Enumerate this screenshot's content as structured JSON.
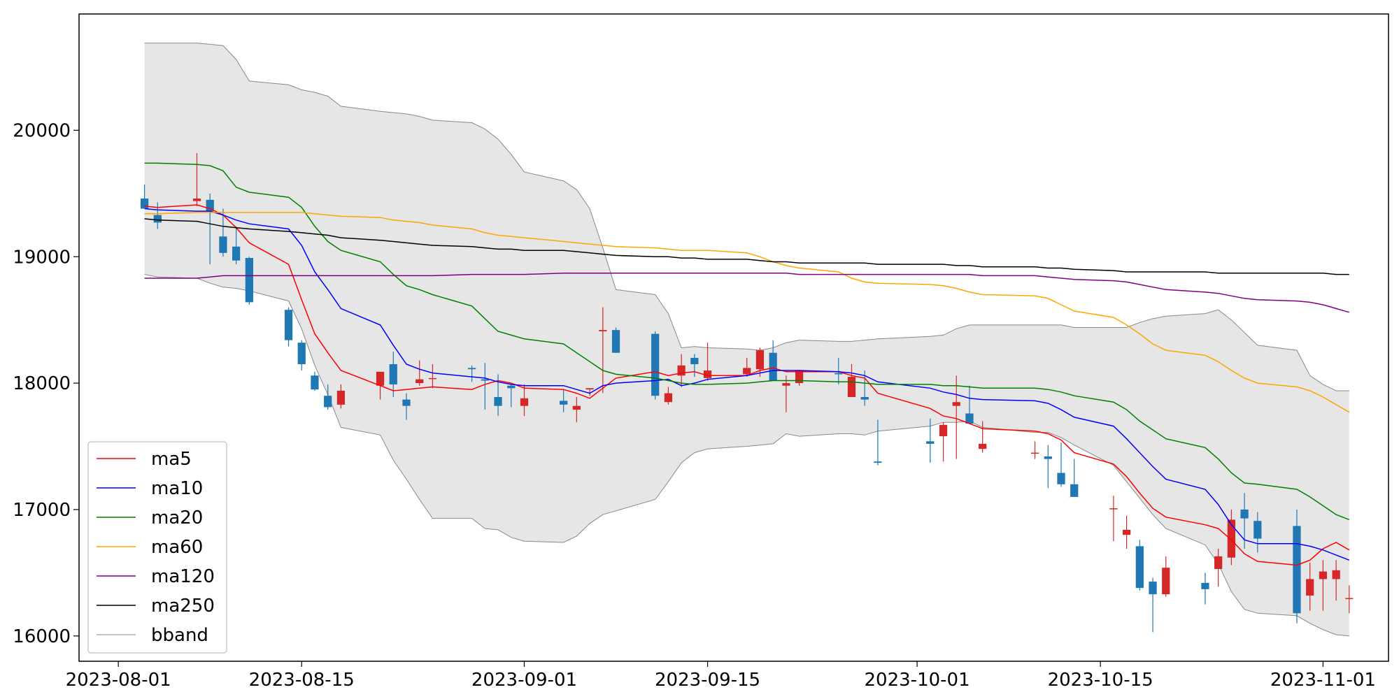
{
  "chart_data": {
    "type": "candlestick",
    "title": "",
    "xlabel": "",
    "ylabel": "",
    "ylim": [
      15800,
      20920
    ],
    "xlim": [
      "2023-07-29",
      "2023-11-06"
    ],
    "grid": false,
    "legend_placement": "lower-left",
    "colors": {
      "up": "#d62728",
      "down": "#1f77b4",
      "bband_fill": "#e6e6e6",
      "bband_line": "#888888"
    },
    "x_ticks": [
      "2023-08-01",
      "2023-08-15",
      "2023-09-01",
      "2023-09-15",
      "2023-10-01",
      "2023-10-15",
      "2023-11-01"
    ],
    "y_ticks": [
      16000,
      17000,
      18000,
      19000,
      20000
    ],
    "dates": [
      "2023-08-03",
      "2023-08-04",
      "2023-08-07",
      "2023-08-08",
      "2023-08-09",
      "2023-08-10",
      "2023-08-11",
      "2023-08-14",
      "2023-08-15",
      "2023-08-16",
      "2023-08-17",
      "2023-08-18",
      "2023-08-21",
      "2023-08-22",
      "2023-08-23",
      "2023-08-24",
      "2023-08-25",
      "2023-08-28",
      "2023-08-29",
      "2023-08-30",
      "2023-08-31",
      "2023-09-01",
      "2023-09-04",
      "2023-09-05",
      "2023-09-06",
      "2023-09-07",
      "2023-09-08",
      "2023-09-11",
      "2023-09-12",
      "2023-09-13",
      "2023-09-14",
      "2023-09-15",
      "2023-09-18",
      "2023-09-19",
      "2023-09-20",
      "2023-09-21",
      "2023-09-22",
      "2023-09-25",
      "2023-09-26",
      "2023-09-27",
      "2023-09-28",
      "2023-10-02",
      "2023-10-03",
      "2023-10-04",
      "2023-10-05",
      "2023-10-06",
      "2023-10-10",
      "2023-10-11",
      "2023-10-12",
      "2023-10-13",
      "2023-10-16",
      "2023-10-17",
      "2023-10-18",
      "2023-10-19",
      "2023-10-20",
      "2023-10-23",
      "2023-10-24",
      "2023-10-25",
      "2023-10-26",
      "2023-10-27",
      "2023-10-30",
      "2023-10-31",
      "2023-11-01",
      "2023-11-02",
      "2023-11-03"
    ],
    "open": [
      19460,
      19330,
      19440,
      19450,
      19160,
      19080,
      18990,
      18580,
      18320,
      18060,
      17900,
      17830,
      17980,
      18150,
      17870,
      18000,
      18040,
      18120,
      18030,
      17890,
      17980,
      17820,
      17860,
      17790,
      17950,
      18410,
      18420,
      18390,
      17850,
      18060,
      18200,
      18040,
      18070,
      18110,
      18240,
      17980,
      18000,
      18080,
      17890,
      17890,
      17380,
      17540,
      17580,
      17820,
      17760,
      17480,
      17450,
      17420,
      17290,
      17200,
      17010,
      16800,
      16710,
      16430,
      16330,
      16420,
      16530,
      16620,
      17000,
      16910,
      16870,
      16320,
      16450,
      16450,
      16300
    ],
    "high": [
      19570,
      19430,
      19820,
      19500,
      19380,
      19240,
      19000,
      18600,
      18340,
      18090,
      17990,
      17990,
      18040,
      18250,
      17920,
      18180,
      18150,
      18140,
      18160,
      18070,
      17990,
      17990,
      17950,
      17890,
      17950,
      18600,
      18440,
      18410,
      17970,
      18230,
      18230,
      18320,
      18200,
      18280,
      18340,
      18060,
      18050,
      18200,
      18150,
      18100,
      17710,
      17720,
      17690,
      18060,
      17980,
      17700,
      17540,
      17510,
      17530,
      17400,
      17110,
      16950,
      16760,
      16460,
      16630,
      16500,
      16690,
      17000,
      17130,
      16980,
      17000,
      16580,
      16600,
      16600,
      16400
    ],
    "low": [
      19400,
      19220,
      19400,
      18940,
      19000,
      18940,
      18620,
      18290,
      18100,
      17940,
      17790,
      17800,
      17870,
      17890,
      17710,
      17980,
      17960,
      18010,
      17790,
      17740,
      17810,
      17740,
      17770,
      17690,
      17900,
      17920,
      18240,
      17870,
      17830,
      17970,
      18050,
      18020,
      18050,
      18050,
      18020,
      17770,
      17980,
      17990,
      17910,
      17820,
      17350,
      17370,
      17380,
      17400,
      17710,
      17450,
      17400,
      17170,
      17180,
      17100,
      16750,
      16690,
      16360,
      16030,
      16310,
      16250,
      16390,
      16560,
      16690,
      16660,
      16100,
      16200,
      16200,
      16280,
      16180
    ],
    "close": [
      19380,
      19270,
      19460,
      19360,
      19030,
      18970,
      18640,
      18340,
      18150,
      17950,
      17810,
      17940,
      18090,
      17990,
      17820,
      18030,
      18040,
      18110,
      18020,
      17820,
      17960,
      17880,
      17830,
      17820,
      17960,
      18420,
      18240,
      17900,
      17920,
      18140,
      18150,
      18100,
      18120,
      18260,
      18020,
      18000,
      18100,
      18070,
      18050,
      17870,
      17370,
      17520,
      17670,
      17850,
      17680,
      17520,
      17450,
      17400,
      17200,
      17100,
      17010,
      16840,
      16380,
      16330,
      16540,
      16370,
      16630,
      16920,
      16930,
      16770,
      16180,
      16450,
      16510,
      16520,
      16300
    ],
    "bband_upper": [
      20690,
      20690,
      20690,
      20680,
      20670,
      20560,
      20390,
      20360,
      20320,
      20300,
      20270,
      20190,
      20150,
      20140,
      20130,
      20110,
      20080,
      20060,
      20010,
      19930,
      19810,
      19670,
      19600,
      19530,
      19380,
      19070,
      18740,
      18700,
      18550,
      18280,
      18290,
      18280,
      18270,
      18260,
      18280,
      18320,
      18340,
      18330,
      18330,
      18340,
      18350,
      18370,
      18380,
      18430,
      18460,
      18460,
      18460,
      18460,
      18460,
      18440,
      18440,
      18440,
      18480,
      18510,
      18530,
      18550,
      18580,
      18500,
      18400,
      18300,
      18260,
      18060,
      17990,
      17940,
      17940
    ],
    "bband_lower": [
      18860,
      18840,
      18830,
      18790,
      18760,
      18750,
      18730,
      18650,
      18430,
      18140,
      17910,
      17650,
      17590,
      17390,
      17240,
      17080,
      16930,
      16930,
      16850,
      16840,
      16780,
      16750,
      16740,
      16790,
      16890,
      16960,
      16990,
      17080,
      17220,
      17370,
      17450,
      17480,
      17500,
      17510,
      17520,
      17600,
      17580,
      17600,
      17600,
      17590,
      17620,
      17660,
      17690,
      17690,
      17700,
      17650,
      17610,
      17610,
      17570,
      17510,
      17350,
      17220,
      17090,
      16960,
      16850,
      16720,
      16570,
      16350,
      16210,
      16180,
      16160,
      16100,
      16050,
      16010,
      16000
    ],
    "series": [
      {
        "name": "ma5",
        "color": "#ff0000",
        "values": [
          19400,
          19390,
          19410,
          19380,
          19330,
          19230,
          19110,
          18940,
          18660,
          18390,
          18240,
          18100,
          17980,
          17940,
          17950,
          17960,
          17970,
          17950,
          17990,
          18020,
          18000,
          17960,
          17950,
          17920,
          17880,
          17960,
          18040,
          18090,
          18060,
          18080,
          18090,
          18060,
          18060,
          18100,
          18120,
          18090,
          18090,
          18090,
          18060,
          18040,
          17920,
          17800,
          17740,
          17720,
          17680,
          17640,
          17620,
          17600,
          17550,
          17450,
          17360,
          17260,
          17130,
          17010,
          16940,
          16880,
          16850,
          16760,
          16650,
          16590,
          16560,
          16600,
          16690,
          16740,
          16680
        ]
      },
      {
        "name": "ma10",
        "color": "#0000ff",
        "values": [
          19380,
          19370,
          19360,
          19360,
          19330,
          19290,
          19260,
          19220,
          19090,
          18880,
          18740,
          18590,
          18460,
          18300,
          18150,
          18110,
          18080,
          18050,
          18040,
          18010,
          17990,
          17980,
          17980,
          17950,
          17920,
          17980,
          18000,
          18020,
          18030,
          17980,
          18000,
          18030,
          18060,
          18080,
          18100,
          18100,
          18100,
          18090,
          18080,
          18060,
          18010,
          17960,
          17930,
          17910,
          17880,
          17870,
          17860,
          17840,
          17790,
          17730,
          17660,
          17560,
          17450,
          17340,
          17240,
          17160,
          17040,
          16880,
          16760,
          16730,
          16730,
          16710,
          16680,
          16640,
          16600
        ]
      },
      {
        "name": "ma20",
        "color": "#008000",
        "values": [
          19740,
          19740,
          19730,
          19720,
          19680,
          19550,
          19510,
          19470,
          19390,
          19240,
          19120,
          19050,
          18960,
          18860,
          18770,
          18740,
          18700,
          18610,
          18510,
          18410,
          18380,
          18350,
          18310,
          18240,
          18170,
          18100,
          18070,
          18040,
          18020,
          18000,
          17990,
          17990,
          18000,
          18010,
          18020,
          18020,
          18020,
          18010,
          18010,
          18000,
          17990,
          17990,
          17980,
          17980,
          17970,
          17960,
          17960,
          17950,
          17930,
          17900,
          17850,
          17790,
          17700,
          17630,
          17560,
          17490,
          17400,
          17290,
          17210,
          17200,
          17160,
          17100,
          17030,
          16960,
          16920
        ]
      },
      {
        "name": "ma60",
        "color": "#ffa500",
        "values": [
          19340,
          19340,
          19350,
          19350,
          19350,
          19350,
          19350,
          19350,
          19350,
          19340,
          19330,
          19320,
          19310,
          19290,
          19280,
          19270,
          19250,
          19220,
          19190,
          19170,
          19160,
          19150,
          19120,
          19110,
          19100,
          19090,
          19080,
          19070,
          19060,
          19050,
          19050,
          19050,
          19030,
          19000,
          18960,
          18930,
          18910,
          18880,
          18830,
          18800,
          18790,
          18780,
          18770,
          18750,
          18720,
          18700,
          18690,
          18670,
          18620,
          18570,
          18520,
          18460,
          18390,
          18310,
          18260,
          18220,
          18170,
          18100,
          18040,
          18000,
          17970,
          17940,
          17890,
          17830,
          17770
        ]
      },
      {
        "name": "ma120",
        "color": "#800080",
        "values": [
          18830,
          18830,
          18830,
          18840,
          18850,
          18850,
          18850,
          18850,
          18850,
          18850,
          18850,
          18850,
          18850,
          18850,
          18850,
          18850,
          18850,
          18860,
          18860,
          18860,
          18860,
          18860,
          18870,
          18870,
          18870,
          18870,
          18870,
          18870,
          18870,
          18870,
          18870,
          18870,
          18870,
          18870,
          18870,
          18870,
          18860,
          18860,
          18860,
          18860,
          18860,
          18860,
          18860,
          18860,
          18860,
          18850,
          18850,
          18840,
          18830,
          18820,
          18810,
          18800,
          18780,
          18760,
          18740,
          18720,
          18710,
          18690,
          18670,
          18660,
          18650,
          18640,
          18620,
          18590,
          18560
        ]
      },
      {
        "name": "ma250",
        "color": "#000000",
        "values": [
          19300,
          19290,
          19280,
          19260,
          19240,
          19230,
          19220,
          19200,
          19190,
          19180,
          19170,
          19150,
          19130,
          19120,
          19110,
          19100,
          19090,
          19080,
          19070,
          19060,
          19060,
          19050,
          19050,
          19040,
          19030,
          19020,
          19010,
          19000,
          19000,
          18990,
          18990,
          18980,
          18980,
          18970,
          18960,
          18960,
          18950,
          18950,
          18950,
          18950,
          18940,
          18940,
          18940,
          18930,
          18930,
          18920,
          18920,
          18910,
          18910,
          18900,
          18890,
          18880,
          18880,
          18880,
          18880,
          18880,
          18870,
          18870,
          18870,
          18870,
          18870,
          18870,
          18870,
          18860,
          18860
        ]
      }
    ],
    "legend": [
      "ma5",
      "ma10",
      "ma20",
      "ma60",
      "ma120",
      "ma250",
      "bband"
    ]
  }
}
